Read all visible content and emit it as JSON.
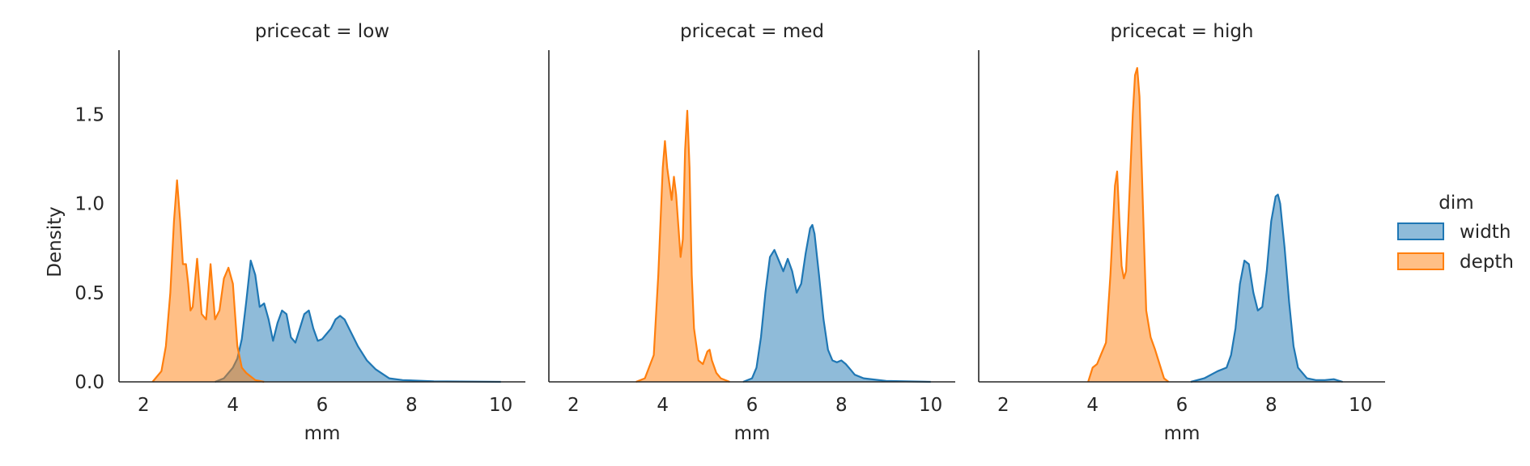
{
  "chart_data": {
    "type": "area",
    "xlabel": "mm",
    "ylabel": "Density",
    "xlim": [
      1.45,
      10.55
    ],
    "ylim": [
      0,
      1.86
    ],
    "xticks": [
      "2",
      "4",
      "6",
      "8",
      "10"
    ],
    "yticks": [
      "0.0",
      "0.5",
      "1.0",
      "1.5"
    ],
    "legend": {
      "title": "dim",
      "placement": "right",
      "entries": [
        {
          "name": "width",
          "color": "#1f77b4"
        },
        {
          "name": "depth",
          "color": "#ff7f0e"
        }
      ]
    },
    "facets": [
      {
        "title": "pricecat = low",
        "series": [
          {
            "name": "depth",
            "color": "#ff7f0e",
            "x": [
              2.2,
              2.4,
              2.5,
              2.6,
              2.68,
              2.75,
              2.82,
              2.88,
              2.95,
              3.0,
              3.05,
              3.1,
              3.2,
              3.3,
              3.4,
              3.5,
              3.6,
              3.7,
              3.8,
              3.9,
              4.0,
              4.1,
              4.2,
              4.3,
              4.4,
              4.5,
              4.7
            ],
            "y": [
              0.0,
              0.06,
              0.2,
              0.5,
              0.9,
              1.13,
              0.9,
              0.66,
              0.66,
              0.55,
              0.4,
              0.42,
              0.69,
              0.38,
              0.35,
              0.66,
              0.35,
              0.4,
              0.58,
              0.64,
              0.55,
              0.2,
              0.08,
              0.05,
              0.03,
              0.01,
              0.0
            ]
          },
          {
            "name": "width",
            "color": "#1f77b4",
            "x": [
              3.6,
              3.8,
              4.0,
              4.1,
              4.2,
              4.3,
              4.4,
              4.5,
              4.6,
              4.7,
              4.8,
              4.9,
              5.0,
              5.1,
              5.2,
              5.3,
              5.4,
              5.5,
              5.6,
              5.7,
              5.8,
              5.9,
              6.0,
              6.1,
              6.2,
              6.3,
              6.4,
              6.5,
              6.6,
              6.8,
              7.0,
              7.2,
              7.5,
              7.8,
              8.5,
              10.0
            ],
            "y": [
              0.0,
              0.02,
              0.08,
              0.13,
              0.24,
              0.45,
              0.68,
              0.6,
              0.42,
              0.44,
              0.35,
              0.23,
              0.33,
              0.4,
              0.38,
              0.25,
              0.22,
              0.3,
              0.38,
              0.4,
              0.3,
              0.23,
              0.24,
              0.27,
              0.3,
              0.35,
              0.37,
              0.35,
              0.3,
              0.2,
              0.12,
              0.07,
              0.02,
              0.01,
              0.003,
              0.0
            ]
          }
        ]
      },
      {
        "title": "pricecat = med",
        "series": [
          {
            "name": "depth",
            "color": "#ff7f0e",
            "x": [
              3.4,
              3.6,
              3.8,
              3.9,
              4.0,
              4.05,
              4.1,
              4.2,
              4.25,
              4.3,
              4.4,
              4.45,
              4.5,
              4.55,
              4.6,
              4.65,
              4.7,
              4.8,
              4.9,
              5.0,
              5.05,
              5.1,
              5.2,
              5.3,
              5.5
            ],
            "y": [
              0.0,
              0.02,
              0.15,
              0.6,
              1.2,
              1.35,
              1.2,
              1.02,
              1.15,
              1.05,
              0.7,
              0.8,
              1.3,
              1.52,
              1.2,
              0.6,
              0.3,
              0.12,
              0.1,
              0.17,
              0.18,
              0.12,
              0.05,
              0.02,
              0.0
            ]
          },
          {
            "name": "width",
            "color": "#1f77b4",
            "x": [
              5.8,
              6.0,
              6.1,
              6.2,
              6.3,
              6.4,
              6.5,
              6.6,
              6.7,
              6.8,
              6.9,
              7.0,
              7.1,
              7.2,
              7.3,
              7.35,
              7.4,
              7.5,
              7.6,
              7.7,
              7.8,
              7.9,
              8.0,
              8.1,
              8.2,
              8.3,
              8.5,
              9.0,
              10.0
            ],
            "y": [
              0.0,
              0.02,
              0.08,
              0.25,
              0.5,
              0.7,
              0.74,
              0.68,
              0.62,
              0.69,
              0.62,
              0.5,
              0.55,
              0.72,
              0.86,
              0.88,
              0.83,
              0.6,
              0.35,
              0.18,
              0.12,
              0.11,
              0.12,
              0.1,
              0.07,
              0.04,
              0.02,
              0.005,
              0.0
            ]
          }
        ]
      },
      {
        "title": "pricecat = high",
        "series": [
          {
            "name": "depth",
            "color": "#ff7f0e",
            "x": [
              3.9,
              4.0,
              4.1,
              4.2,
              4.3,
              4.4,
              4.5,
              4.55,
              4.6,
              4.65,
              4.7,
              4.75,
              4.8,
              4.9,
              4.95,
              5.0,
              5.05,
              5.1,
              5.15,
              5.2,
              5.3,
              5.4,
              5.5,
              5.6,
              5.7
            ],
            "y": [
              0.0,
              0.08,
              0.1,
              0.16,
              0.22,
              0.6,
              1.1,
              1.18,
              0.9,
              0.65,
              0.58,
              0.62,
              0.9,
              1.5,
              1.72,
              1.76,
              1.6,
              1.2,
              0.8,
              0.4,
              0.25,
              0.18,
              0.1,
              0.02,
              0.0
            ]
          },
          {
            "name": "width",
            "color": "#1f77b4",
            "x": [
              6.2,
              6.5,
              6.8,
              7.0,
              7.1,
              7.2,
              7.3,
              7.4,
              7.5,
              7.6,
              7.7,
              7.8,
              7.9,
              8.0,
              8.1,
              8.15,
              8.2,
              8.3,
              8.4,
              8.5,
              8.6,
              8.8,
              9.0,
              9.2,
              9.4,
              9.6
            ],
            "y": [
              0.0,
              0.02,
              0.06,
              0.08,
              0.15,
              0.3,
              0.55,
              0.68,
              0.66,
              0.5,
              0.4,
              0.42,
              0.62,
              0.9,
              1.04,
              1.05,
              1.0,
              0.75,
              0.45,
              0.2,
              0.08,
              0.02,
              0.01,
              0.01,
              0.015,
              0.0
            ]
          }
        ]
      }
    ]
  }
}
